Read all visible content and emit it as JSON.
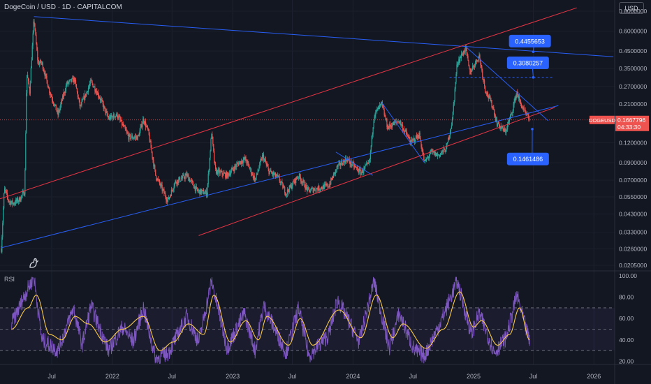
{
  "header": {
    "symbol_title": "DogeCoin / USD · 1D · CAPITALCOM",
    "currency": "USD"
  },
  "colors": {
    "background": "#131722",
    "up": "#26a69a",
    "down": "#ef5350",
    "trend_blue": "#2962ff",
    "channel_red": "#f23645",
    "rsi_line": "#7e57c2",
    "rsi_ma": "#f7c948",
    "callout": "#2962ff"
  },
  "chart_data": [
    {
      "type": "candlestick",
      "name": "DOGEUSD",
      "y_scale": "log",
      "ylim": [
        0.0195,
        0.85
      ],
      "xlim": [
        "2021-01-25",
        "2026-03-05"
      ],
      "y_ticks": [
        "0.8000000",
        "0.6000000",
        "0.4500000",
        "0.3500000",
        "0.2700000",
        "0.2100000",
        "0.1200000",
        "0.0900000",
        "0.0700000",
        "0.0550000",
        "0.0430000",
        "0.0330000",
        "0.0260000",
        "0.0205000"
      ],
      "x_ticks": [
        {
          "date": "2021-07-01",
          "label": "Jul"
        },
        {
          "date": "2022-01-01",
          "label": "2022"
        },
        {
          "date": "2022-07-01",
          "label": "Jul"
        },
        {
          "date": "2023-01-01",
          "label": "2023"
        },
        {
          "date": "2023-07-01",
          "label": "Jul"
        },
        {
          "date": "2024-01-01",
          "label": "2024"
        },
        {
          "date": "2024-07-01",
          "label": "Jul"
        },
        {
          "date": "2025-01-01",
          "label": "2025"
        },
        {
          "date": "2025-07-01",
          "label": "Jul"
        },
        {
          "date": "2026-01-01",
          "label": "2026"
        }
      ],
      "price_path": [
        [
          "2021-01-29",
          0.026
        ],
        [
          "2021-02-07",
          0.062
        ],
        [
          "2021-02-20",
          0.052
        ],
        [
          "2021-03-05",
          0.05
        ],
        [
          "2021-03-25",
          0.053
        ],
        [
          "2021-04-10",
          0.06
        ],
        [
          "2021-04-16",
          0.33
        ],
        [
          "2021-04-25",
          0.25
        ],
        [
          "2021-05-08",
          0.72
        ],
        [
          "2021-05-20",
          0.38
        ],
        [
          "2021-06-01",
          0.38
        ],
        [
          "2021-06-25",
          0.25
        ],
        [
          "2021-07-20",
          0.18
        ],
        [
          "2021-08-15",
          0.28
        ],
        [
          "2021-09-08",
          0.3
        ],
        [
          "2021-09-25",
          0.2
        ],
        [
          "2021-10-15",
          0.25
        ],
        [
          "2021-10-28",
          0.29
        ],
        [
          "2021-11-20",
          0.24
        ],
        [
          "2021-12-20",
          0.17
        ],
        [
          "2022-01-15",
          0.18
        ],
        [
          "2022-02-20",
          0.13
        ],
        [
          "2022-03-20",
          0.13
        ],
        [
          "2022-04-05",
          0.17
        ],
        [
          "2022-04-20",
          0.14
        ],
        [
          "2022-05-12",
          0.075
        ],
        [
          "2022-06-18",
          0.052
        ],
        [
          "2022-07-10",
          0.068
        ],
        [
          "2022-08-15",
          0.075
        ],
        [
          "2022-09-15",
          0.06
        ],
        [
          "2022-10-15",
          0.058
        ],
        [
          "2022-10-29",
          0.14
        ],
        [
          "2022-11-09",
          0.08
        ],
        [
          "2022-12-15",
          0.075
        ],
        [
          "2023-01-20",
          0.09
        ],
        [
          "2023-02-08",
          0.095
        ],
        [
          "2023-03-10",
          0.07
        ],
        [
          "2023-04-02",
          0.1
        ],
        [
          "2023-04-20",
          0.08
        ],
        [
          "2023-05-20",
          0.072
        ],
        [
          "2023-06-12",
          0.058
        ],
        [
          "2023-07-20",
          0.075
        ],
        [
          "2023-08-18",
          0.06
        ],
        [
          "2023-09-15",
          0.062
        ],
        [
          "2023-10-20",
          0.065
        ],
        [
          "2023-11-15",
          0.085
        ],
        [
          "2023-12-12",
          0.095
        ],
        [
          "2024-01-25",
          0.078
        ],
        [
          "2024-02-20",
          0.09
        ],
        [
          "2024-03-05",
          0.18
        ],
        [
          "2024-03-28",
          0.21
        ],
        [
          "2024-04-15",
          0.15
        ],
        [
          "2024-05-20",
          0.165
        ],
        [
          "2024-06-25",
          0.12
        ],
        [
          "2024-07-20",
          0.135
        ],
        [
          "2024-08-05",
          0.09
        ],
        [
          "2024-08-25",
          0.105
        ],
        [
          "2024-09-15",
          0.1
        ],
        [
          "2024-10-10",
          0.11
        ],
        [
          "2024-10-28",
          0.165
        ],
        [
          "2024-11-12",
          0.38
        ],
        [
          "2024-12-08",
          0.47
        ],
        [
          "2024-12-20",
          0.33
        ],
        [
          "2025-01-18",
          0.42
        ],
        [
          "2025-02-05",
          0.26
        ],
        [
          "2025-03-01",
          0.2
        ],
        [
          "2025-03-12",
          0.16
        ],
        [
          "2025-04-07",
          0.14
        ],
        [
          "2025-04-25",
          0.18
        ],
        [
          "2025-05-12",
          0.25
        ],
        [
          "2025-05-20",
          0.22
        ],
        [
          "2025-06-05",
          0.185
        ],
        [
          "2025-06-20",
          0.1667796
        ]
      ],
      "last_price": {
        "symbol": "DOGEUSD",
        "value": "0.1667796",
        "countdown": "04:33:30"
      },
      "trendlines": [
        {
          "color": "blue",
          "from": [
            "2021-01-29",
            0.0264
          ],
          "to": [
            "2025-09-15",
            0.205
          ]
        },
        {
          "color": "blue",
          "from": [
            "2021-05-08",
            0.74
          ],
          "to": [
            "2026-03-01",
            0.415
          ]
        },
        {
          "color": "red",
          "from": [
            "2021-01-25",
            0.0535
          ],
          "to": [
            "2025-11-10",
            0.84
          ]
        },
        {
          "color": "red",
          "from": [
            "2022-09-20",
            0.0315
          ],
          "to": [
            "2025-09-05",
            0.2
          ]
        },
        {
          "color": "blue",
          "from": [
            "2024-03-28",
            0.215
          ],
          "to": [
            "2024-08-05",
            0.09
          ]
        },
        {
          "color": "blue",
          "from": [
            "2023-11-10",
            0.105
          ],
          "to": [
            "2024-03-01",
            0.075
          ]
        },
        {
          "color": "blue",
          "from": [
            "2024-12-08",
            0.48
          ],
          "to": [
            "2025-08-15",
            0.165
          ]
        }
      ],
      "dashed_level": {
        "from": "2024-10-20",
        "to": "2025-09-01",
        "value": 0.3080257
      },
      "callouts": [
        {
          "label": "0.4455653",
          "anchor": [
            "2025-07-01",
            0.4455653
          ],
          "box_at": [
            "2025-05-01",
            0.52
          ]
        },
        {
          "label": "0.3080257",
          "anchor": [
            "2025-07-01",
            0.3080257
          ],
          "box_at": [
            "2025-04-25",
            0.38
          ]
        },
        {
          "label": "0.1461486",
          "anchor": [
            "2025-06-28",
            0.1461486
          ],
          "box_at": [
            "2025-04-25",
            0.095
          ]
        }
      ]
    },
    {
      "type": "line",
      "name": "RSI",
      "title": "RSI",
      "ylim": [
        15,
        102
      ],
      "y_ticks": [
        "100.00",
        "80.00",
        "60.00",
        "40.00",
        "20.00"
      ],
      "band": [
        30,
        70
      ],
      "midline": 50,
      "rsi_path": [
        [
          "2021-03-01",
          55
        ],
        [
          "2021-04-15",
          85
        ],
        [
          "2021-05-08",
          99
        ],
        [
          "2021-06-01",
          40
        ],
        [
          "2021-07-20",
          30
        ],
        [
          "2021-09-05",
          70
        ],
        [
          "2021-10-01",
          35
        ],
        [
          "2021-10-28",
          72
        ],
        [
          "2021-12-20",
          30
        ],
        [
          "2022-02-01",
          52
        ],
        [
          "2022-03-05",
          38
        ],
        [
          "2022-04-05",
          70
        ],
        [
          "2022-05-12",
          22
        ],
        [
          "2022-06-20",
          28
        ],
        [
          "2022-08-15",
          62
        ],
        [
          "2022-09-20",
          38
        ],
        [
          "2022-10-29",
          95
        ],
        [
          "2022-12-15",
          32
        ],
        [
          "2023-02-05",
          65
        ],
        [
          "2023-03-10",
          30
        ],
        [
          "2023-04-05",
          72
        ],
        [
          "2023-06-12",
          28
        ],
        [
          "2023-07-20",
          70
        ],
        [
          "2023-08-20",
          25
        ],
        [
          "2023-10-20",
          45
        ],
        [
          "2023-11-15",
          78
        ],
        [
          "2024-01-20",
          38
        ],
        [
          "2024-03-05",
          95
        ],
        [
          "2024-04-20",
          32
        ],
        [
          "2024-05-20",
          65
        ],
        [
          "2024-07-05",
          30
        ],
        [
          "2024-08-05",
          25
        ],
        [
          "2024-09-25",
          58
        ],
        [
          "2024-11-12",
          95
        ],
        [
          "2024-12-25",
          45
        ],
        [
          "2025-01-18",
          65
        ],
        [
          "2025-03-05",
          28
        ],
        [
          "2025-04-10",
          42
        ],
        [
          "2025-05-12",
          82
        ],
        [
          "2025-06-20",
          38
        ]
      ],
      "rsi_ma_path": [
        [
          "2021-03-01",
          50
        ],
        [
          "2021-04-20",
          70
        ],
        [
          "2021-05-15",
          82
        ],
        [
          "2021-06-25",
          45
        ],
        [
          "2021-08-01",
          40
        ],
        [
          "2021-09-10",
          62
        ],
        [
          "2021-10-20",
          55
        ],
        [
          "2021-12-10",
          38
        ],
        [
          "2022-02-01",
          50
        ],
        [
          "2022-04-05",
          62
        ],
        [
          "2022-05-25",
          30
        ],
        [
          "2022-07-05",
          38
        ],
        [
          "2022-08-20",
          55
        ],
        [
          "2022-10-05",
          45
        ],
        [
          "2022-11-05",
          82
        ],
        [
          "2022-12-25",
          38
        ],
        [
          "2023-02-10",
          58
        ],
        [
          "2023-03-20",
          40
        ],
        [
          "2023-04-15",
          62
        ],
        [
          "2023-06-20",
          35
        ],
        [
          "2023-07-25",
          60
        ],
        [
          "2023-09-01",
          35
        ],
        [
          "2023-11-20",
          68
        ],
        [
          "2024-01-25",
          42
        ],
        [
          "2024-03-12",
          82
        ],
        [
          "2024-05-01",
          42
        ],
        [
          "2024-06-01",
          55
        ],
        [
          "2024-08-10",
          32
        ],
        [
          "2024-10-01",
          50
        ],
        [
          "2024-11-20",
          85
        ],
        [
          "2025-01-01",
          52
        ],
        [
          "2025-01-25",
          58
        ],
        [
          "2025-03-15",
          35
        ],
        [
          "2025-04-20",
          45
        ],
        [
          "2025-05-20",
          70
        ],
        [
          "2025-06-20",
          40
        ]
      ]
    }
  ]
}
